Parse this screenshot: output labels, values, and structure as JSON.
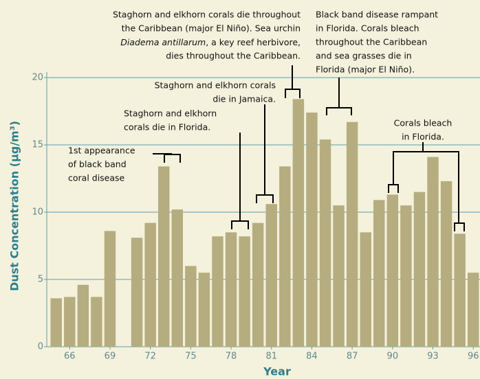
{
  "chart_data": {
    "type": "bar",
    "y_label": "Dust Concentration (µg/m³)",
    "x_label": "Year",
    "x": [
      65,
      66,
      67,
      68,
      69,
      71,
      72,
      73,
      74,
      75,
      76,
      77,
      78,
      79,
      80,
      81,
      82,
      83,
      84,
      85,
      86,
      87,
      88,
      89,
      90,
      91,
      92,
      93,
      94,
      95,
      96
    ],
    "values": [
      3.6,
      3.7,
      4.6,
      3.7,
      8.6,
      8.1,
      9.2,
      13.4,
      10.2,
      6.0,
      5.5,
      8.2,
      8.5,
      8.2,
      9.2,
      10.6,
      13.4,
      18.4,
      17.4,
      15.4,
      10.5,
      16.7,
      8.5,
      10.9,
      11.3,
      10.5,
      11.5,
      14.1,
      12.3,
      8.4,
      5.5
    ],
    "color": "#b5ad7f",
    "xlim": [
      64.3,
      96.5
    ],
    "xticks": [
      66,
      69,
      72,
      75,
      78,
      81,
      84,
      87,
      90,
      93,
      96
    ],
    "ylim": [
      0,
      20
    ],
    "yticks": [
      0,
      5,
      10,
      15,
      20
    ],
    "grid": true,
    "annotations": [
      {
        "lines": [
          "Staghorn and elkhorn corals die throughout",
          "the Caribbean (major El Niño). Sea urchin",
          [
            "Diadema antillarum",
            ", a key reef herbivore,"
          ],
          "dies throughout the Caribbean."
        ]
      },
      {
        "lines": [
          "Black band disease rampant",
          "in Florida. Corals bleach",
          "throughout the Caribbean",
          "and sea grasses die in",
          "Florida (major El Niño)."
        ]
      },
      {
        "lines": [
          "Staghorn and elkhorn corals",
          "die in Jamaica."
        ]
      },
      {
        "lines": [
          "Staghorn and elkhorn",
          "corals die in Florida."
        ]
      },
      {
        "lines": [
          "1st appearance",
          "of black band",
          "coral disease"
        ]
      },
      {
        "lines": [
          "Corals bleach",
          "in Florida."
        ]
      }
    ]
  }
}
